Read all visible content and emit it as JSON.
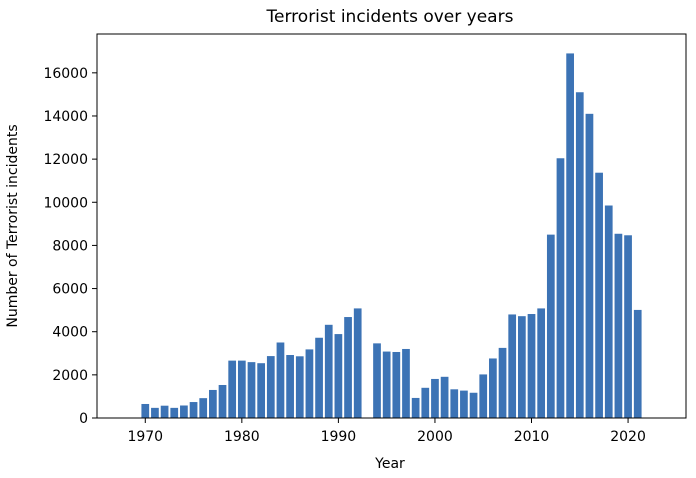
{
  "chart_data": {
    "type": "bar",
    "title": "Terrorist incidents over years",
    "xlabel": "Year",
    "ylabel": "Number of Terrorist incidents",
    "xlim": [
      1965,
      2026
    ],
    "ylim": [
      0,
      17800
    ],
    "xticks": [
      1970,
      1980,
      1990,
      2000,
      2010,
      2020
    ],
    "yticks": [
      0,
      2000,
      4000,
      6000,
      8000,
      10000,
      12000,
      14000,
      16000
    ],
    "grid": false,
    "bar_color": "#3c73b5",
    "x": [
      1970,
      1971,
      1972,
      1973,
      1974,
      1975,
      1976,
      1977,
      1978,
      1979,
      1980,
      1981,
      1982,
      1983,
      1984,
      1985,
      1986,
      1987,
      1988,
      1989,
      1990,
      1991,
      1992,
      1994,
      1995,
      1996,
      1997,
      1998,
      1999,
      2000,
      2001,
      2002,
      2003,
      2004,
      2005,
      2006,
      2007,
      2008,
      2009,
      2010,
      2011,
      2012,
      2013,
      2014,
      2015,
      2016,
      2017,
      2018,
      2019,
      2020,
      2021
    ],
    "values": [
      650,
      470,
      570,
      470,
      580,
      740,
      920,
      1300,
      1530,
      2660,
      2660,
      2590,
      2540,
      2870,
      3500,
      2920,
      2860,
      3180,
      3720,
      4320,
      3890,
      4680,
      5080,
      3460,
      3080,
      3060,
      3200,
      930,
      1400,
      1810,
      1910,
      1330,
      1270,
      1170,
      2020,
      2760,
      3250,
      4800,
      4720,
      4820,
      5080,
      8500,
      12040,
      16900,
      15100,
      14100,
      11370,
      9850,
      8540,
      8470,
      5010
    ]
  }
}
